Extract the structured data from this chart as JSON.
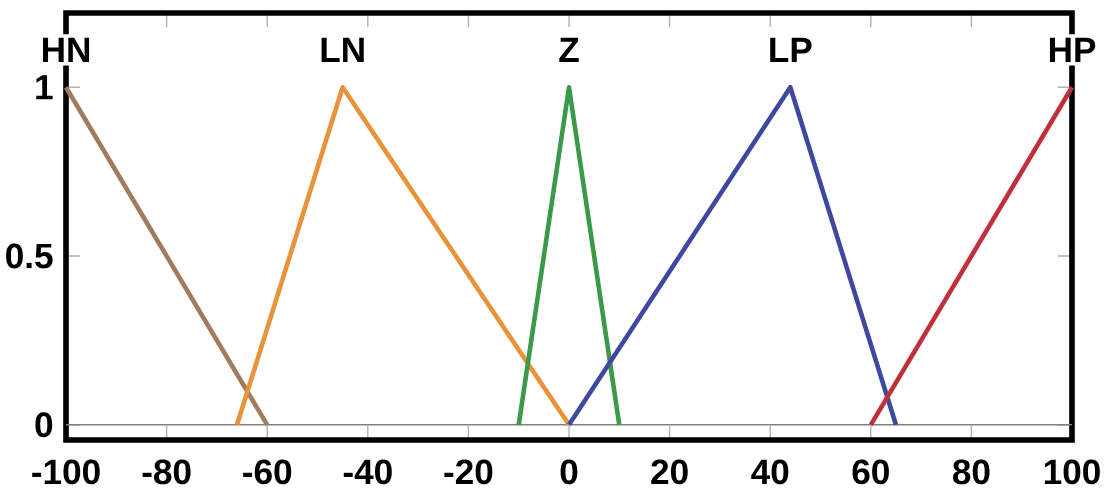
{
  "chart_data": {
    "type": "line",
    "series": [
      {
        "name": "HN",
        "color": "#a07c5c",
        "x": [
          -100,
          -60
        ],
        "values": [
          1,
          0
        ]
      },
      {
        "name": "LN",
        "color": "#e8923a",
        "x": [
          -66,
          -45,
          0
        ],
        "values": [
          0,
          1,
          0
        ]
      },
      {
        "name": "Z",
        "color": "#3a9a4a",
        "x": [
          -10,
          0,
          10
        ],
        "values": [
          0,
          1,
          0
        ]
      },
      {
        "name": "LP",
        "color": "#3f48a0",
        "x": [
          0,
          44,
          65
        ],
        "values": [
          0,
          1,
          0
        ]
      },
      {
        "name": "HP",
        "color": "#c0303a",
        "x": [
          60,
          100
        ],
        "values": [
          0,
          1
        ]
      }
    ],
    "xlim": [
      -100,
      100
    ],
    "ylim": [
      -0.045,
      1.22
    ],
    "xticks": [
      -100,
      -80,
      -60,
      -40,
      -20,
      0,
      20,
      40,
      60,
      80,
      100
    ],
    "yticks": [
      0,
      0.5,
      1
    ],
    "ref_lines": [
      {
        "axis": "y",
        "value": 0,
        "color": "#808080"
      }
    ],
    "marker": "none",
    "line_style": "solid",
    "grid": false
  }
}
